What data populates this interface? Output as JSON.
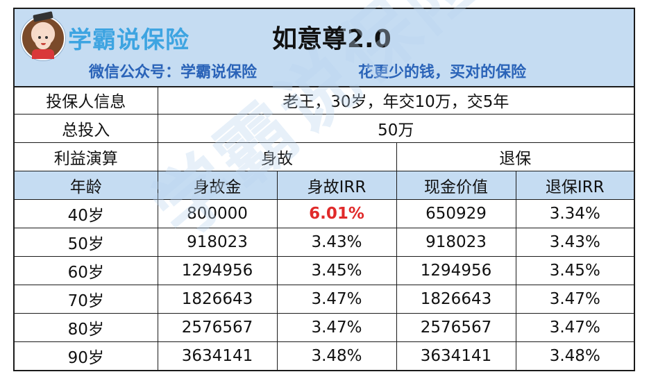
{
  "header": {
    "brand": "学霸说保险",
    "title": "如意尊2.0",
    "subtitle_left": "微信公众号：学霸说保险",
    "subtitle_right": "花更少的钱，买对的保险"
  },
  "info": {
    "insured_label": "投保人信息",
    "insured_value": "老王，30岁，年交10万，交5年",
    "total_label": "总投入",
    "total_value": "50万",
    "benefit_label": "利益演算",
    "death_group": "身故",
    "surrender_group": "退保"
  },
  "columns": [
    "年龄",
    "身故金",
    "身故IRR",
    "现金价值",
    "退保IRR"
  ],
  "rows": [
    [
      "40岁",
      "800000",
      "6.01%",
      "650929",
      "3.34%"
    ],
    [
      "50岁",
      "918023",
      "3.43%",
      "918023",
      "3.43%"
    ],
    [
      "60岁",
      "1294956",
      "3.45%",
      "1294956",
      "3.45%"
    ],
    [
      "70岁",
      "1826643",
      "3.47%",
      "1826643",
      "3.47%"
    ],
    [
      "80岁",
      "2576567",
      "3.47%",
      "2576567",
      "3.47%"
    ],
    [
      "90岁",
      "3634141",
      "3.48%",
      "3634141",
      "3.48%"
    ]
  ],
  "watermark": "学霸说保险",
  "colors": {
    "header_band": "#c5dcf2",
    "highlight": "#e02a2a",
    "subtitle": "#2a63b8",
    "brand": "#2f9ee0"
  }
}
